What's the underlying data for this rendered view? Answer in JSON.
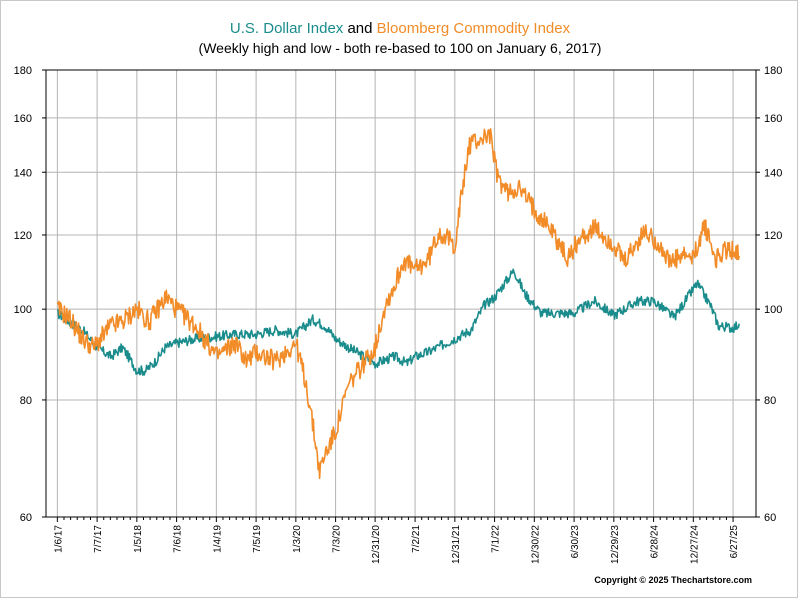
{
  "chart_data": {
    "type": "line",
    "title_part1": "U.S. Dollar Index",
    "title_joiner": " and ",
    "title_part2": "Bloomberg Commodity Index",
    "subtitle": "(Weekly high and low - both re-based to 100 on January 6, 2017)",
    "copyright": "Copyright © 2025 Thechartstore.com",
    "y_scale": "log",
    "ylim": [
      60,
      180
    ],
    "y_ticks": [
      60,
      80,
      100,
      120,
      140,
      160,
      180
    ],
    "y_tick_labels": [
      "60",
      "80",
      "100",
      "120",
      "140",
      "160",
      "180"
    ],
    "xlim": [
      "2016-11-15",
      "2025-10-10"
    ],
    "x_tick_labels": [
      "1/6/17",
      "7/7/17",
      "1/5/18",
      "7/6/18",
      "1/4/19",
      "7/5/19",
      "1/3/20",
      "7/3/20",
      "12/31/20",
      "7/2/21",
      "12/31/21",
      "7/1/22",
      "12/30/22",
      "6/30/23",
      "12/29/23",
      "6/28/24",
      "12/27/24",
      "6/27/25"
    ],
    "x_tick_dates": [
      "2017-01-06",
      "2017-07-07",
      "2018-01-05",
      "2018-07-06",
      "2019-01-04",
      "2019-07-05",
      "2020-01-03",
      "2020-07-03",
      "2020-12-31",
      "2021-07-02",
      "2021-12-31",
      "2022-07-01",
      "2022-12-30",
      "2023-06-30",
      "2023-12-29",
      "2024-06-28",
      "2024-12-27",
      "2025-06-27"
    ],
    "grid": true,
    "colors": {
      "dollar": "#1a8c8c",
      "commodity": "#f28c28",
      "grid": "#b4b4b4",
      "title_text": "#000000"
    },
    "series": [
      {
        "name": "U.S. Dollar Index",
        "color": "#1a8c8c",
        "x": [
          "2017-01-06",
          "2017-03-01",
          "2017-05-01",
          "2017-07-07",
          "2017-09-08",
          "2017-11-01",
          "2018-01-05",
          "2018-02-15",
          "2018-04-01",
          "2018-05-15",
          "2018-07-06",
          "2018-10-01",
          "2019-01-04",
          "2019-04-01",
          "2019-07-05",
          "2019-10-01",
          "2020-01-03",
          "2020-03-20",
          "2020-05-15",
          "2020-07-03",
          "2020-09-01",
          "2020-12-31",
          "2021-03-31",
          "2021-05-25",
          "2021-07-02",
          "2021-09-01",
          "2021-12-31",
          "2022-03-15",
          "2022-05-15",
          "2022-07-01",
          "2022-09-28",
          "2022-11-15",
          "2022-12-30",
          "2023-02-01",
          "2023-04-15",
          "2023-06-30",
          "2023-09-30",
          "2023-12-29",
          "2024-04-15",
          "2024-06-28",
          "2024-09-30",
          "2024-12-27",
          "2025-01-13",
          "2025-03-15",
          "2025-04-21",
          "2025-06-27",
          "2025-07-25"
        ],
        "values": [
          99,
          97,
          95,
          91,
          89,
          91,
          86,
          86,
          88,
          91,
          92,
          93,
          93.5,
          94,
          94,
          95,
          94,
          97.5,
          96,
          93,
          91,
          87.5,
          89,
          87.5,
          89,
          90,
          93,
          95,
          101,
          103,
          110,
          104,
          101,
          99,
          99,
          99,
          102,
          98.5,
          102,
          102,
          98,
          105,
          106.5,
          101,
          96,
          95.5,
          96.5
        ]
      },
      {
        "name": "Bloomberg Commodity Index",
        "color": "#f28c28",
        "x": [
          "2017-01-06",
          "2017-03-01",
          "2017-05-01",
          "2017-06-22",
          "2017-09-08",
          "2017-11-01",
          "2018-01-05",
          "2018-03-01",
          "2018-05-20",
          "2018-07-06",
          "2018-10-01",
          "2019-01-04",
          "2019-04-01",
          "2019-05-25",
          "2019-07-05",
          "2019-10-01",
          "2020-01-03",
          "2020-02-20",
          "2020-04-21",
          "2020-05-15",
          "2020-07-03",
          "2020-09-01",
          "2020-12-31",
          "2021-02-15",
          "2021-03-31",
          "2021-05-12",
          "2021-07-02",
          "2021-09-01",
          "2021-10-20",
          "2021-12-31",
          "2022-03-08",
          "2022-05-01",
          "2022-06-09",
          "2022-07-15",
          "2022-09-01",
          "2022-10-15",
          "2022-12-30",
          "2023-03-15",
          "2023-05-31",
          "2023-07-15",
          "2023-09-28",
          "2023-12-29",
          "2024-02-15",
          "2024-05-20",
          "2024-07-15",
          "2024-09-10",
          "2024-11-15",
          "2024-12-27",
          "2025-02-15",
          "2025-04-08",
          "2025-05-10",
          "2025-06-27",
          "2025-07-25"
        ],
        "values": [
          100,
          98,
          93,
          91,
          96,
          97,
          100,
          97,
          103,
          100,
          96,
          89,
          92,
          88,
          90,
          88,
          92,
          83,
          67,
          70,
          74,
          83,
          91,
          101,
          106,
          113,
          110,
          113,
          121,
          117,
          150,
          152,
          154,
          138,
          133,
          135,
          128,
          122,
          113,
          118,
          122,
          117,
          112,
          121,
          118,
          112,
          114,
          113,
          123,
          113,
          115,
          116,
          114
        ]
      }
    ]
  }
}
